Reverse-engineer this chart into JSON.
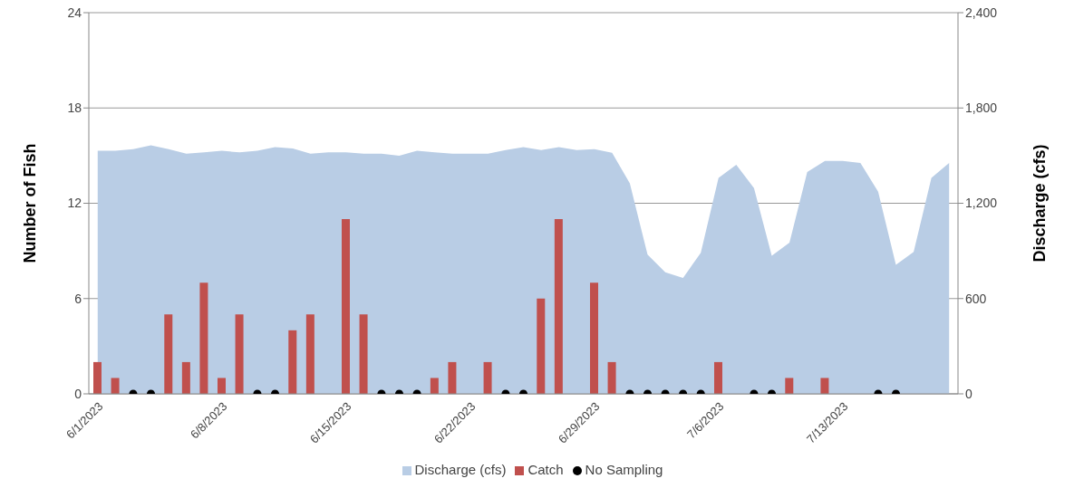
{
  "chart_data": {
    "type": "bar",
    "categories": [
      "6/1/2023",
      null,
      null,
      null,
      null,
      null,
      null,
      "6/8/2023",
      null,
      null,
      null,
      null,
      null,
      null,
      "6/15/2023",
      null,
      null,
      null,
      null,
      null,
      null,
      "6/22/2023",
      null,
      null,
      null,
      null,
      null,
      null,
      "6/29/2023",
      null,
      null,
      null,
      null,
      null,
      null,
      "7/6/2023",
      null,
      null,
      null,
      null,
      null,
      null,
      "7/13/2023",
      null,
      null,
      null,
      null,
      null,
      null
    ],
    "series": [
      {
        "name": "Discharge (cfs)",
        "type": "area",
        "axis": "y2",
        "color": "#b9cde5",
        "values": [
          1530,
          1530,
          1540,
          1565,
          1540,
          1512,
          1520,
          1530,
          1520,
          1530,
          1553,
          1545,
          1512,
          1520,
          1520,
          1512,
          1512,
          1500,
          1530,
          1520,
          1512,
          1512,
          1512,
          1535,
          1553,
          1535,
          1553,
          1535,
          1540,
          1518,
          1325,
          876,
          765,
          730,
          888,
          1360,
          1442,
          1296,
          870,
          952,
          1396,
          1466,
          1466,
          1454,
          1273,
          812,
          893,
          1360,
          1454
        ]
      },
      {
        "name": "Catch",
        "color": "#c0504d",
        "values": [
          2,
          1,
          null,
          null,
          5,
          2,
          7,
          1,
          5,
          null,
          null,
          4,
          5,
          0,
          11,
          5,
          null,
          null,
          null,
          1,
          2,
          0,
          2,
          null,
          null,
          6,
          11,
          0,
          7,
          2,
          null,
          null,
          null,
          null,
          null,
          2,
          0,
          null,
          null,
          1,
          0,
          1,
          0,
          0,
          null,
          null,
          0,
          0,
          0
        ]
      },
      {
        "name": "No Sampling",
        "type": "scatter",
        "color": "#000000",
        "marker": "circle",
        "values": [
          null,
          null,
          0,
          0,
          null,
          null,
          null,
          null,
          null,
          0,
          0,
          null,
          null,
          null,
          null,
          null,
          0,
          0,
          0,
          null,
          null,
          null,
          null,
          0,
          0,
          null,
          null,
          null,
          null,
          null,
          0,
          0,
          0,
          0,
          0,
          null,
          null,
          0,
          0,
          null,
          null,
          null,
          null,
          null,
          0,
          0,
          null,
          null,
          null
        ]
      }
    ],
    "ylabel": "Number of Fish",
    "y2label": "Discharge (cfs)",
    "ylim": [
      0,
      24
    ],
    "yticks": [
      0,
      6,
      12,
      18,
      24
    ],
    "y2lim": [
      0,
      2400
    ],
    "y2ticks": [
      0,
      {
        "value": 600,
        "label": "600"
      },
      {
        "value": 1200,
        "label": "1,200"
      },
      {
        "value": 1800,
        "label": "1,800"
      },
      {
        "value": 2400,
        "label": "2,400"
      }
    ],
    "grid": "y",
    "legend": "bottom"
  }
}
